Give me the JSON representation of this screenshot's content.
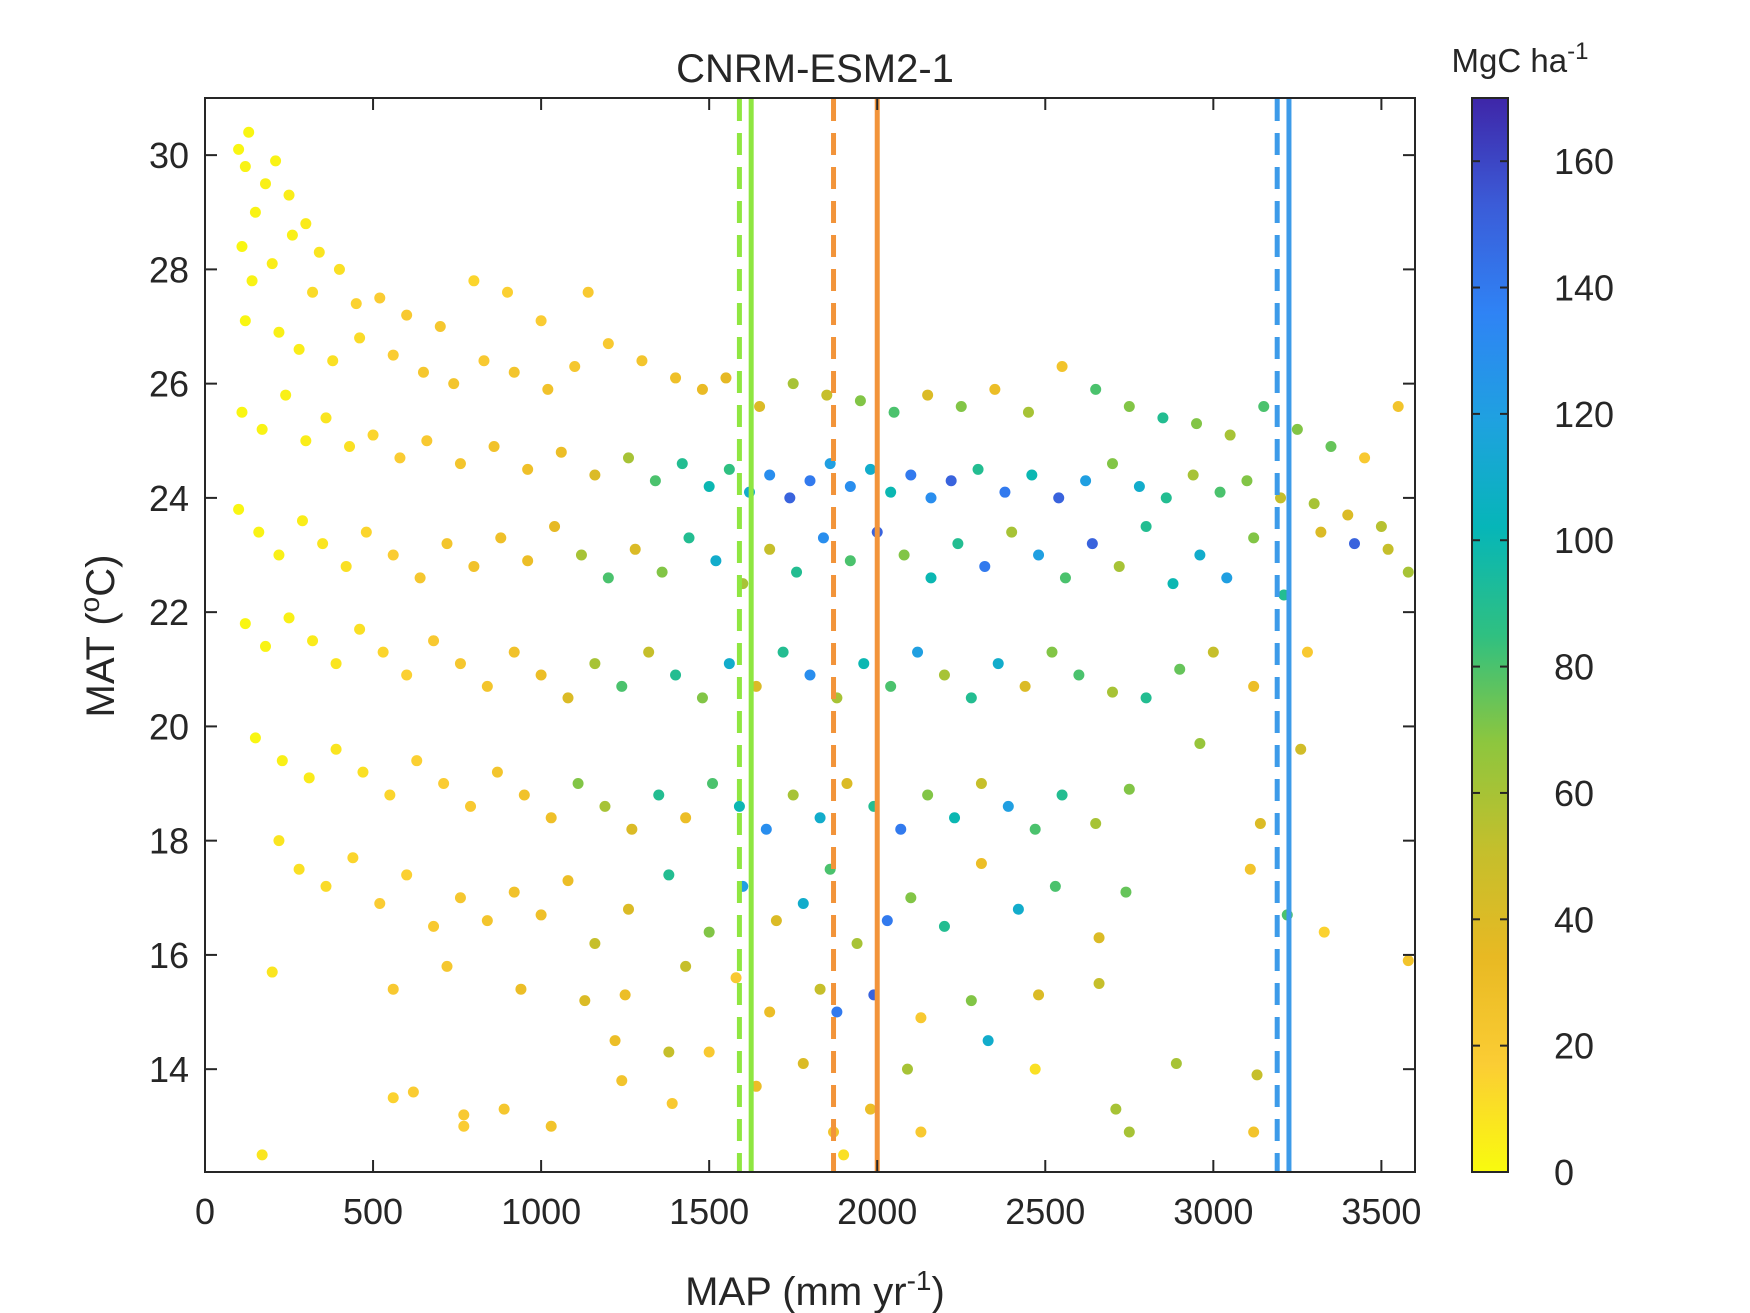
{
  "chart_data": {
    "type": "scatter",
    "title": "CNRM-ESM2-1",
    "xlabel": {
      "text": "MAP (mm yr",
      "sup": "-1",
      "suffix": ")"
    },
    "ylabel": {
      "text": "MAT (",
      "sup": "o",
      "suffix": "C)"
    },
    "xlim": [
      0,
      3600
    ],
    "ylim": [
      12.2,
      31.0
    ],
    "xticks": [
      0,
      500,
      1000,
      1500,
      2000,
      2500,
      3000,
      3500
    ],
    "yticks": [
      14,
      16,
      18,
      20,
      22,
      24,
      26,
      28,
      30
    ],
    "grid": false,
    "colorbar": {
      "title": "MgC ha",
      "title_sup": "-1",
      "range": [
        0,
        170
      ],
      "ticks": [
        0,
        20,
        40,
        60,
        80,
        100,
        120,
        140,
        160
      ],
      "colormap": "parula",
      "stops": [
        "#f9fb0e",
        "#fbcd34",
        "#e8b923",
        "#c4bf2c",
        "#8dc63e",
        "#2fc081",
        "#06b6b8",
        "#1fa1e0",
        "#2f83f5",
        "#3b5cd8",
        "#3e26a8"
      ]
    },
    "vertical_lines": [
      {
        "x": 1590,
        "color": "#8fe641",
        "style": "dashed"
      },
      {
        "x": 1625,
        "color": "#8fe641",
        "style": "solid"
      },
      {
        "x": 1870,
        "color": "#f2943a",
        "style": "dashed"
      },
      {
        "x": 2000,
        "color": "#f2943a",
        "style": "solid"
      },
      {
        "x": 3190,
        "color": "#3d9be9",
        "style": "dashed"
      },
      {
        "x": 3225,
        "color": "#3d9be9",
        "style": "solid"
      }
    ],
    "points": [
      [
        100,
        30.1,
        2
      ],
      [
        130,
        30.4,
        2
      ],
      [
        120,
        29.8,
        3
      ],
      [
        180,
        29.5,
        4
      ],
      [
        210,
        29.9,
        3
      ],
      [
        250,
        29.3,
        5
      ],
      [
        150,
        29.0,
        3
      ],
      [
        300,
        28.8,
        6
      ],
      [
        110,
        28.4,
        2
      ],
      [
        200,
        28.1,
        5
      ],
      [
        260,
        28.6,
        4
      ],
      [
        340,
        28.3,
        8
      ],
      [
        400,
        28.0,
        10
      ],
      [
        140,
        27.8,
        3
      ],
      [
        320,
        27.6,
        12
      ],
      [
        450,
        27.4,
        15
      ],
      [
        520,
        27.5,
        18
      ],
      [
        600,
        27.2,
        20
      ],
      [
        700,
        27.0,
        22
      ],
      [
        800,
        27.8,
        14
      ],
      [
        900,
        27.6,
        16
      ],
      [
        1000,
        27.1,
        18
      ],
      [
        1140,
        27.6,
        20
      ],
      [
        120,
        27.1,
        2
      ],
      [
        220,
        26.9,
        4
      ],
      [
        280,
        26.6,
        5
      ],
      [
        380,
        26.4,
        10
      ],
      [
        460,
        26.8,
        12
      ],
      [
        560,
        26.5,
        18
      ],
      [
        650,
        26.2,
        22
      ],
      [
        740,
        26.0,
        24
      ],
      [
        830,
        26.4,
        20
      ],
      [
        920,
        26.2,
        24
      ],
      [
        1020,
        25.9,
        26
      ],
      [
        1100,
        26.3,
        22
      ],
      [
        1200,
        26.7,
        20
      ],
      [
        1300,
        26.4,
        24
      ],
      [
        1400,
        26.1,
        28
      ],
      [
        1480,
        25.9,
        32
      ],
      [
        1550,
        26.1,
        35
      ],
      [
        1650,
        25.6,
        40
      ],
      [
        1750,
        26.0,
        60
      ],
      [
        1850,
        25.8,
        50
      ],
      [
        1950,
        25.7,
        70
      ],
      [
        2050,
        25.5,
        80
      ],
      [
        2150,
        25.8,
        40
      ],
      [
        2250,
        25.6,
        70
      ],
      [
        2350,
        25.9,
        30
      ],
      [
        2450,
        25.5,
        60
      ],
      [
        2550,
        26.3,
        25
      ],
      [
        2650,
        25.9,
        80
      ],
      [
        2750,
        25.6,
        70
      ],
      [
        2850,
        25.4,
        90
      ],
      [
        2950,
        25.3,
        70
      ],
      [
        3050,
        25.1,
        60
      ],
      [
        3150,
        25.6,
        80
      ],
      [
        3250,
        25.2,
        70
      ],
      [
        3350,
        24.9,
        75
      ],
      [
        3450,
        24.7,
        20
      ],
      [
        3550,
        25.6,
        25
      ],
      [
        3590,
        25.3,
        80
      ],
      [
        110,
        25.5,
        2
      ],
      [
        170,
        25.2,
        3
      ],
      [
        240,
        25.8,
        4
      ],
      [
        300,
        25.0,
        5
      ],
      [
        360,
        25.4,
        8
      ],
      [
        430,
        24.9,
        10
      ],
      [
        500,
        25.1,
        14
      ],
      [
        580,
        24.7,
        18
      ],
      [
        660,
        25.0,
        20
      ],
      [
        760,
        24.6,
        24
      ],
      [
        860,
        24.9,
        26
      ],
      [
        960,
        24.5,
        28
      ],
      [
        1060,
        24.8,
        30
      ],
      [
        1160,
        24.4,
        40
      ],
      [
        1260,
        24.7,
        60
      ],
      [
        1340,
        24.3,
        80
      ],
      [
        1420,
        24.6,
        90
      ],
      [
        1500,
        24.2,
        100
      ],
      [
        1560,
        24.5,
        85
      ],
      [
        1620,
        24.1,
        110
      ],
      [
        1680,
        24.4,
        130
      ],
      [
        1740,
        24.0,
        150
      ],
      [
        1800,
        24.3,
        140
      ],
      [
        1860,
        24.6,
        120
      ],
      [
        1920,
        24.2,
        130
      ],
      [
        1980,
        24.5,
        110
      ],
      [
        2040,
        24.1,
        100
      ],
      [
        2100,
        24.4,
        140
      ],
      [
        2160,
        24.0,
        130
      ],
      [
        2220,
        24.3,
        150
      ],
      [
        2300,
        24.5,
        90
      ],
      [
        2380,
        24.1,
        140
      ],
      [
        2460,
        24.4,
        100
      ],
      [
        2540,
        24.0,
        150
      ],
      [
        2620,
        24.3,
        120
      ],
      [
        2700,
        24.6,
        70
      ],
      [
        2780,
        24.2,
        110
      ],
      [
        2860,
        24.0,
        90
      ],
      [
        2940,
        24.4,
        60
      ],
      [
        3020,
        24.1,
        80
      ],
      [
        3100,
        24.3,
        70
      ],
      [
        3200,
        24.0,
        50
      ],
      [
        3300,
        23.9,
        60
      ],
      [
        3400,
        23.7,
        40
      ],
      [
        3500,
        23.5,
        55
      ],
      [
        3590,
        23.5,
        20
      ],
      [
        100,
        23.8,
        2
      ],
      [
        160,
        23.4,
        3
      ],
      [
        220,
        23.0,
        4
      ],
      [
        290,
        23.6,
        5
      ],
      [
        350,
        23.2,
        8
      ],
      [
        420,
        22.8,
        10
      ],
      [
        480,
        23.4,
        14
      ],
      [
        560,
        23.0,
        18
      ],
      [
        640,
        22.6,
        22
      ],
      [
        720,
        23.2,
        24
      ],
      [
        800,
        22.8,
        26
      ],
      [
        880,
        23.3,
        28
      ],
      [
        960,
        22.9,
        30
      ],
      [
        1040,
        23.5,
        35
      ],
      [
        1120,
        23.0,
        60
      ],
      [
        1200,
        22.6,
        80
      ],
      [
        1280,
        23.1,
        40
      ],
      [
        1360,
        22.7,
        70
      ],
      [
        1440,
        23.3,
        90
      ],
      [
        1520,
        22.9,
        110
      ],
      [
        1600,
        22.5,
        60
      ],
      [
        1680,
        23.1,
        50
      ],
      [
        1760,
        22.7,
        90
      ],
      [
        1840,
        23.3,
        130
      ],
      [
        1920,
        22.9,
        80
      ],
      [
        2000,
        23.4,
        150
      ],
      [
        2080,
        23.0,
        70
      ],
      [
        2160,
        22.6,
        100
      ],
      [
        2240,
        23.2,
        90
      ],
      [
        2320,
        22.8,
        140
      ],
      [
        2400,
        23.4,
        60
      ],
      [
        2480,
        23.0,
        120
      ],
      [
        2560,
        22.6,
        80
      ],
      [
        2640,
        23.2,
        150
      ],
      [
        2720,
        22.8,
        60
      ],
      [
        2800,
        23.5,
        90
      ],
      [
        2880,
        22.5,
        100
      ],
      [
        2960,
        23.0,
        110
      ],
      [
        3040,
        22.6,
        120
      ],
      [
        3120,
        23.3,
        70
      ],
      [
        3210,
        22.3,
        90
      ],
      [
        3320,
        23.4,
        40
      ],
      [
        3420,
        23.2,
        150
      ],
      [
        3520,
        23.1,
        50
      ],
      [
        3580,
        22.7,
        60
      ],
      [
        120,
        21.8,
        2
      ],
      [
        180,
        21.4,
        3
      ],
      [
        250,
        21.9,
        4
      ],
      [
        320,
        21.5,
        6
      ],
      [
        390,
        21.1,
        8
      ],
      [
        460,
        21.7,
        10
      ],
      [
        530,
        21.3,
        14
      ],
      [
        600,
        20.9,
        16
      ],
      [
        680,
        21.5,
        20
      ],
      [
        760,
        21.1,
        22
      ],
      [
        840,
        20.7,
        24
      ],
      [
        920,
        21.3,
        26
      ],
      [
        1000,
        20.9,
        30
      ],
      [
        1080,
        20.5,
        40
      ],
      [
        1160,
        21.1,
        60
      ],
      [
        1240,
        20.7,
        80
      ],
      [
        1320,
        21.3,
        50
      ],
      [
        1400,
        20.9,
        90
      ],
      [
        1480,
        20.5,
        70
      ],
      [
        1560,
        21.1,
        110
      ],
      [
        1640,
        20.7,
        40
      ],
      [
        1720,
        21.3,
        90
      ],
      [
        1800,
        20.9,
        130
      ],
      [
        1880,
        20.5,
        60
      ],
      [
        1960,
        21.1,
        100
      ],
      [
        2040,
        20.7,
        80
      ],
      [
        2120,
        21.3,
        120
      ],
      [
        2200,
        20.9,
        60
      ],
      [
        2280,
        20.5,
        90
      ],
      [
        2360,
        21.1,
        110
      ],
      [
        2440,
        20.7,
        40
      ],
      [
        2520,
        21.3,
        70
      ],
      [
        2600,
        20.9,
        80
      ],
      [
        2700,
        20.6,
        60
      ],
      [
        2800,
        20.5,
        90
      ],
      [
        2900,
        21.0,
        75
      ],
      [
        3000,
        21.3,
        50
      ],
      [
        3120,
        20.7,
        30
      ],
      [
        3280,
        21.3,
        20
      ],
      [
        150,
        19.8,
        2
      ],
      [
        230,
        19.4,
        4
      ],
      [
        310,
        19.1,
        6
      ],
      [
        390,
        19.6,
        8
      ],
      [
        470,
        19.2,
        10
      ],
      [
        550,
        18.8,
        14
      ],
      [
        630,
        19.4,
        16
      ],
      [
        710,
        19.0,
        18
      ],
      [
        790,
        18.6,
        20
      ],
      [
        870,
        19.2,
        24
      ],
      [
        950,
        18.8,
        26
      ],
      [
        1030,
        18.4,
        28
      ],
      [
        1110,
        19.0,
        70
      ],
      [
        1190,
        18.6,
        60
      ],
      [
        1270,
        18.2,
        40
      ],
      [
        1350,
        18.8,
        90
      ],
      [
        1430,
        18.4,
        30
      ],
      [
        1510,
        19.0,
        80
      ],
      [
        1590,
        18.6,
        100
      ],
      [
        1670,
        18.2,
        130
      ],
      [
        1750,
        18.8,
        60
      ],
      [
        1830,
        18.4,
        110
      ],
      [
        1910,
        19.0,
        40
      ],
      [
        1990,
        18.6,
        90
      ],
      [
        2070,
        18.2,
        140
      ],
      [
        2150,
        18.8,
        70
      ],
      [
        2230,
        18.4,
        100
      ],
      [
        2310,
        19.0,
        50
      ],
      [
        2390,
        18.6,
        120
      ],
      [
        2470,
        18.2,
        80
      ],
      [
        2550,
        18.8,
        90
      ],
      [
        2650,
        18.3,
        60
      ],
      [
        2750,
        18.9,
        70
      ],
      [
        2960,
        19.7,
        65
      ],
      [
        3140,
        18.3,
        40
      ],
      [
        3260,
        19.6,
        45
      ],
      [
        220,
        18.0,
        8
      ],
      [
        280,
        17.5,
        10
      ],
      [
        360,
        17.2,
        12
      ],
      [
        440,
        17.7,
        14
      ],
      [
        520,
        16.9,
        18
      ],
      [
        600,
        17.4,
        16
      ],
      [
        680,
        16.5,
        20
      ],
      [
        760,
        17.0,
        22
      ],
      [
        840,
        16.6,
        24
      ],
      [
        920,
        17.1,
        26
      ],
      [
        1000,
        16.7,
        28
      ],
      [
        1080,
        17.3,
        30
      ],
      [
        1160,
        16.2,
        50
      ],
      [
        1260,
        16.8,
        40
      ],
      [
        1380,
        17.4,
        90
      ],
      [
        1500,
        16.4,
        70
      ],
      [
        1600,
        17.2,
        120
      ],
      [
        1700,
        16.6,
        40
      ],
      [
        1780,
        16.9,
        110
      ],
      [
        1860,
        17.5,
        80
      ],
      [
        1940,
        16.2,
        60
      ],
      [
        2030,
        16.6,
        140
      ],
      [
        2100,
        17.0,
        70
      ],
      [
        2200,
        16.5,
        90
      ],
      [
        2310,
        17.6,
        30
      ],
      [
        2420,
        16.8,
        110
      ],
      [
        2530,
        17.2,
        80
      ],
      [
        2660,
        16.3,
        40
      ],
      [
        2740,
        17.1,
        75
      ],
      [
        3110,
        17.5,
        25
      ],
      [
        3220,
        16.7,
        80
      ],
      [
        3330,
        16.4,
        15
      ],
      [
        200,
        15.7,
        8
      ],
      [
        560,
        15.4,
        20
      ],
      [
        720,
        15.8,
        22
      ],
      [
        940,
        15.4,
        30
      ],
      [
        1130,
        15.2,
        40
      ],
      [
        1250,
        15.3,
        30
      ],
      [
        1430,
        15.8,
        50
      ],
      [
        1580,
        15.6,
        20
      ],
      [
        1680,
        15.0,
        30
      ],
      [
        1830,
        15.4,
        50
      ],
      [
        1880,
        15.0,
        140
      ],
      [
        1990,
        15.3,
        150
      ],
      [
        2130,
        14.9,
        20
      ],
      [
        2280,
        15.2,
        70
      ],
      [
        2480,
        15.3,
        40
      ],
      [
        2660,
        15.5,
        50
      ],
      [
        3580,
        15.9,
        25
      ],
      [
        1220,
        14.5,
        30
      ],
      [
        1380,
        14.3,
        50
      ],
      [
        1500,
        14.3,
        20
      ],
      [
        1780,
        14.1,
        40
      ],
      [
        2090,
        14.0,
        60
      ],
      [
        2330,
        14.5,
        110
      ],
      [
        2890,
        14.1,
        60
      ],
      [
        3130,
        13.9,
        50
      ],
      [
        1240,
        13.8,
        25
      ],
      [
        1640,
        13.7,
        30
      ],
      [
        2470,
        14.0,
        10
      ],
      [
        1390,
        13.4,
        20
      ],
      [
        1980,
        13.3,
        30
      ],
      [
        2710,
        13.3,
        60
      ],
      [
        560,
        13.5,
        15
      ],
      [
        620,
        13.6,
        18
      ],
      [
        770,
        13.2,
        20
      ],
      [
        890,
        13.3,
        22
      ],
      [
        1030,
        13.0,
        25
      ],
      [
        2130,
        12.9,
        20
      ],
      [
        2750,
        12.9,
        60
      ],
      [
        3120,
        12.9,
        25
      ],
      [
        1870,
        12.9,
        25
      ],
      [
        170,
        12.5,
        8
      ],
      [
        1900,
        12.5,
        10
      ],
      [
        770,
        13.0,
        18
      ]
    ]
  }
}
